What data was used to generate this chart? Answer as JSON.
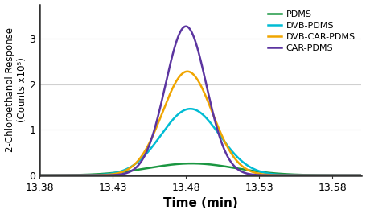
{
  "title": "",
  "xlabel": "Time (min)",
  "ylabel": "2-Chloroethanol Response\n(Counts x10⁵)",
  "xlim": [
    13.38,
    13.6
  ],
  "ylim": [
    0,
    3.75
  ],
  "xticks": [
    13.38,
    13.43,
    13.48,
    13.53,
    13.58
  ],
  "yticks": [
    0,
    1,
    2,
    3
  ],
  "series": [
    {
      "label": "PDMS",
      "color": "#1a9641",
      "peak": 13.484,
      "amplitude": 0.26,
      "sigma": 0.03
    },
    {
      "label": "DVB-PDMS",
      "color": "#00bcd4",
      "peak": 13.483,
      "amplitude": 1.46,
      "sigma": 0.02
    },
    {
      "label": "DVB-CAR-PDMS",
      "color": "#f0a500",
      "peak": 13.481,
      "amplitude": 2.28,
      "sigma": 0.017
    },
    {
      "label": "CAR-PDMS",
      "color": "#5c35a0",
      "peak": 13.48,
      "amplitude": 3.27,
      "sigma": 0.014
    }
  ],
  "figure_bg": "#ffffff",
  "plot_bg": "#ffffff",
  "grid_color": "#d0d0d0",
  "spine_color": "#333333",
  "legend_fontsize": 8,
  "xlabel_fontsize": 11,
  "ylabel_fontsize": 8.5,
  "tick_fontsize": 9,
  "line_width": 1.8
}
